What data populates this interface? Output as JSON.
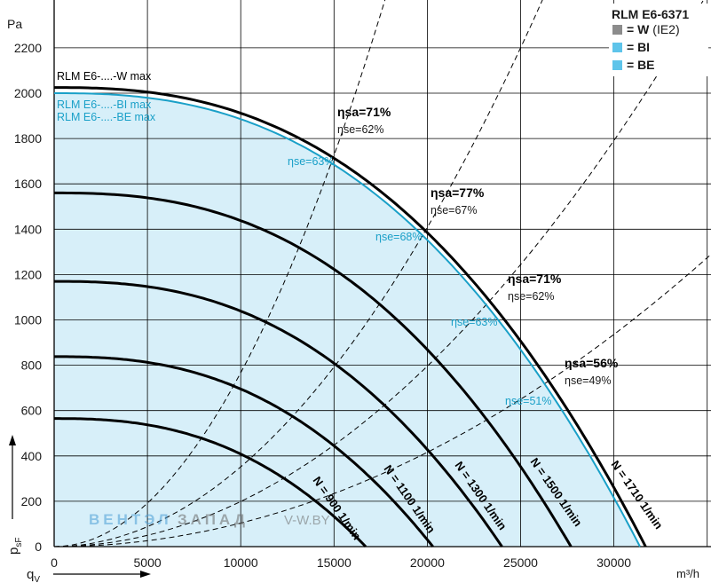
{
  "chart_data": {
    "type": "line",
    "model": "RLM E6-6371",
    "x_unit": "m³/h",
    "y_unit": "Pa",
    "x_axis_symbol": "q",
    "x_axis_sub": "V",
    "y_axis_symbol": "p",
    "y_axis_sub": "sF",
    "xlim": [
      0,
      35000
    ],
    "ylim": [
      0,
      2350
    ],
    "x_ticks": [
      0,
      5000,
      10000,
      15000,
      20000,
      25000,
      30000
    ],
    "y_ticks": [
      0,
      200,
      400,
      600,
      800,
      1000,
      1200,
      1400,
      1600,
      1800,
      2000,
      2200
    ],
    "grid": true,
    "legend": [
      {
        "symbol": "= W",
        "suffix": "(IE2)",
        "color": "#8c8c8c"
      },
      {
        "symbol": "= BI",
        "suffix": "",
        "color": "#5ec4ea"
      },
      {
        "symbol": "= BE",
        "suffix": "",
        "color": "#5ec4ea"
      }
    ],
    "max_curves": [
      {
        "label": "RLM E6-....-W max",
        "color": "#000000",
        "p0": 2025,
        "q0": 31700
      },
      {
        "label": "RLM E6-....-BI max",
        "color": "#1aa0c8",
        "p0": 2000,
        "q0": 31400
      },
      {
        "label": "RLM E6-....-BE max",
        "color": "#1aa0c8",
        "p0": 2000,
        "q0": 31400
      }
    ],
    "speed_curves": [
      {
        "label": "N = 900 1/min",
        "p0": 565,
        "q0": 16700
      },
      {
        "label": "N = 1100 1/min",
        "p0": 838,
        "q0": 20300
      },
      {
        "label": "N = 1300 1/min",
        "p0": 1170,
        "q0": 24000
      },
      {
        "label": "N = 1500 1/min",
        "p0": 1560,
        "q0": 27700
      },
      {
        "label": "N = 1710 1/min",
        "p0": 2025,
        "q0": 31700
      }
    ],
    "efficiency_lines": [
      {
        "eta_sa": "ηsa=71%",
        "eta_se": "ηse=62%",
        "eta_se_blue": "ηse=63%",
        "k": 7.67e-06
      },
      {
        "eta_sa": "ηsa=77%",
        "eta_se": "ηse=67%",
        "eta_se_blue": "ηse=68%",
        "k": 3.52e-06
      },
      {
        "eta_sa": "ηsa=71%",
        "eta_se": "ηse=62%",
        "eta_se_blue": "ηse=63%",
        "k": 1.99e-06
      },
      {
        "eta_sa": "ηsa=56%",
        "eta_se": "ηse=49%",
        "eta_se_blue": "ηse=51%",
        "k": 1.04e-06
      }
    ],
    "watermark": {
      "brand1": "ВЕНТЭЛ",
      "brand2": "ЗАПАД",
      "site": "V-W.BY"
    }
  }
}
